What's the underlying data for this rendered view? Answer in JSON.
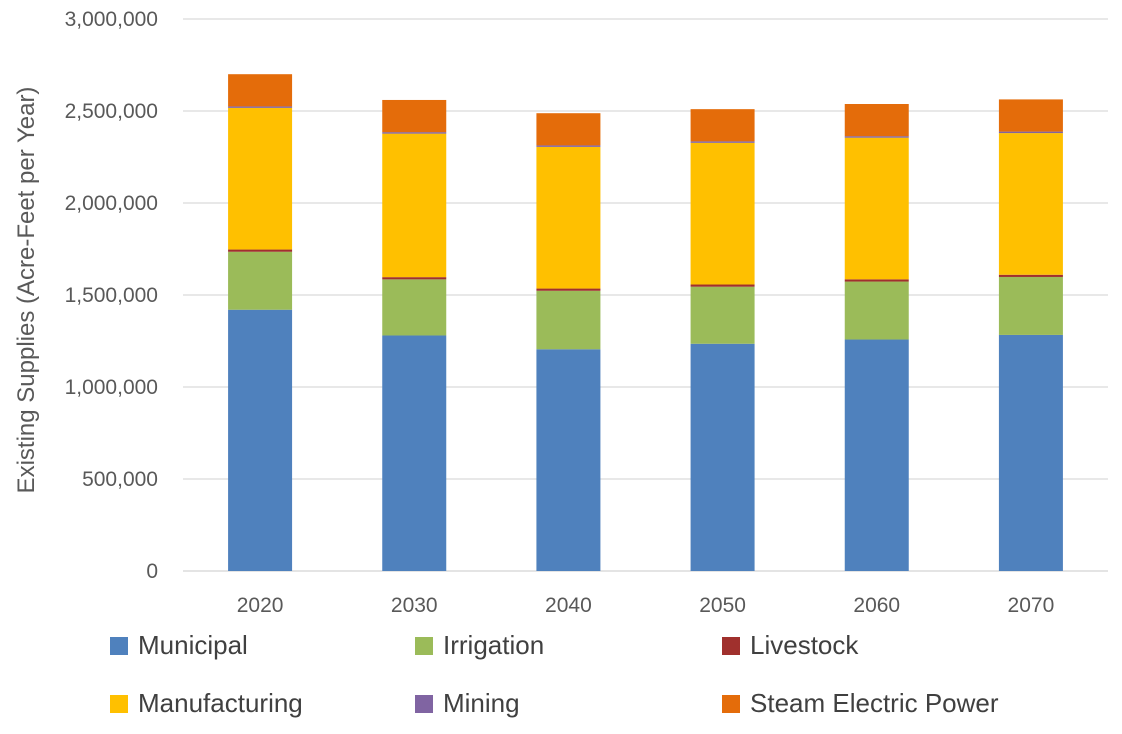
{
  "chart_data": {
    "type": "bar",
    "stacked": true,
    "categories": [
      "2020",
      "2030",
      "2040",
      "2050",
      "2060",
      "2070"
    ],
    "ylabel": "Existing Supplies (Acre-Feet per Year)",
    "ylim": [
      0,
      3000000
    ],
    "yticks": [
      0,
      500000,
      1000000,
      1500000,
      2000000,
      2500000,
      3000000
    ],
    "ytick_labels": [
      "0",
      "500,000",
      "1,000,000",
      "1,500,000",
      "2,000,000",
      "2,500,000",
      "3,000,000"
    ],
    "grid": true,
    "legend_position": "bottom",
    "series": [
      {
        "name": "Municipal",
        "color": "#4F81BD",
        "values": [
          1420000,
          1280000,
          1205000,
          1235000,
          1258000,
          1283000
        ]
      },
      {
        "name": "Irrigation",
        "color": "#9BBB59",
        "values": [
          315000,
          305000,
          318000,
          310000,
          315000,
          315000
        ]
      },
      {
        "name": "Livestock",
        "color": "#A0302D",
        "values": [
          12000,
          12000,
          12000,
          12000,
          12000,
          12000
        ]
      },
      {
        "name": "Manufacturing",
        "color": "#FFC000",
        "values": [
          770000,
          780000,
          770000,
          770000,
          770000,
          770000
        ]
      },
      {
        "name": "Mining",
        "color": "#8064A2",
        "values": [
          8000,
          8000,
          8000,
          8000,
          8000,
          8000
        ]
      },
      {
        "name": "Steam Electric Power",
        "color": "#E46C0A",
        "values": [
          175000,
          175000,
          175000,
          175000,
          175000,
          175000
        ]
      }
    ]
  }
}
